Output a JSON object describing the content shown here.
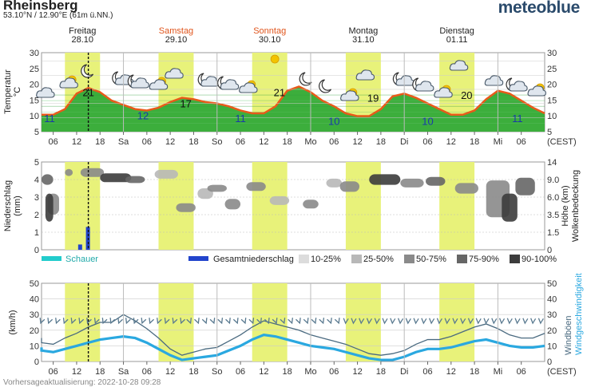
{
  "header": {
    "location": "Rheinsberg",
    "coordinates": "53.10°N / 12.90°E (61m ü.NN.)",
    "brand": "meteoblue"
  },
  "footer": {
    "updated": "Vorhersageaktualisierung: 2022-10-28 09:28"
  },
  "colors": {
    "daylight": "#e8f27a",
    "temp_line": "#e85a1a",
    "temp_fill": "#3cae3c",
    "weekend_label": "#e0541b",
    "precip_bar": "#2244cc",
    "shower": "#22cccc",
    "wind": "#2aa8e0",
    "gust": "#4a6a80"
  },
  "days": [
    {
      "name": "Freitag",
      "date": "28.10",
      "weekend": false
    },
    {
      "name": "Samstag",
      "date": "29.10",
      "weekend": true
    },
    {
      "name": "Sonntag",
      "date": "30.10",
      "weekend": true
    },
    {
      "name": "Montag",
      "date": "31.10",
      "weekend": false
    },
    {
      "name": "Dienstag",
      "date": "01.11",
      "weekend": false
    }
  ],
  "time_axis": {
    "ticks": [
      "06",
      "12",
      "18",
      "Sa",
      "06",
      "12",
      "18",
      "So",
      "06",
      "12",
      "18",
      "Mo",
      "06",
      "12",
      "18",
      "Di",
      "06",
      "12",
      "18",
      "Mi",
      "06"
    ],
    "tz_label": "(CEST)"
  },
  "chart_data": [
    {
      "type": "area",
      "title": "",
      "ylabel": "Temperatur °C",
      "ylim": [
        5,
        33
      ],
      "yticks": [
        "5",
        "10",
        "15",
        "20",
        "25",
        "30"
      ],
      "x_unit": "hours from 2022-10-28 00:00",
      "series": [
        {
          "name": "Temperatur",
          "x": [
            3,
            6,
            9,
            12,
            15,
            18,
            21,
            24,
            27,
            30,
            33,
            36,
            39,
            42,
            45,
            48,
            51,
            54,
            57,
            60,
            63,
            66,
            69,
            72,
            75,
            78,
            81,
            84,
            87,
            90,
            93,
            96,
            99,
            102,
            105,
            108,
            111,
            114,
            117,
            120,
            123,
            126,
            129,
            132
          ],
          "values": [
            11,
            11,
            13,
            18.5,
            20.5,
            19,
            16,
            14.5,
            13,
            12.5,
            13.5,
            15.5,
            17,
            16.5,
            15.5,
            15,
            14,
            12.5,
            11.5,
            11.5,
            14,
            19.5,
            21,
            19,
            16,
            14,
            11.5,
            10.5,
            10.5,
            13,
            17.5,
            18.5,
            17,
            15,
            13,
            11,
            11,
            12.5,
            16.5,
            19.5,
            18.5,
            16,
            13.5,
            11.5
          ]
        }
      ],
      "labels": [
        {
          "x": 3,
          "value": "11",
          "kind": "min"
        },
        {
          "x": 15,
          "value": "21",
          "kind": "max"
        },
        {
          "x": 29,
          "value": "12",
          "kind": "min"
        },
        {
          "x": 40,
          "value": "17",
          "kind": "max"
        },
        {
          "x": 54,
          "value": "11",
          "kind": "min"
        },
        {
          "x": 64,
          "value": "21",
          "kind": "max"
        },
        {
          "x": 78,
          "value": "10",
          "kind": "min"
        },
        {
          "x": 88,
          "value": "19",
          "kind": "max"
        },
        {
          "x": 102,
          "value": "10",
          "kind": "min"
        },
        {
          "x": 112,
          "value": "20",
          "kind": "max"
        },
        {
          "x": 125,
          "value": "11",
          "kind": "min"
        }
      ],
      "ylabel_right": ""
    },
    {
      "type": "heatmap",
      "title": "",
      "ylabel": "Niederschlag (mm)",
      "ylim": [
        0,
        5
      ],
      "yticks": [
        "0",
        "1",
        "2",
        "3",
        "4",
        "5"
      ],
      "ylabel_right": "Höhe (km) Wolkenbedeckung",
      "yticks_right": [
        "0",
        "1.5",
        "3.5",
        "6.0",
        "9.0",
        "14"
      ],
      "bars": [
        {
          "name": "Gesamtniederschlag",
          "x": [
            13,
            15
          ],
          "values": [
            0.3,
            1.3
          ]
        }
      ],
      "legend": [
        {
          "label": "Schauer",
          "color": "#22cccc"
        },
        {
          "label": "Gesamtniederschlag",
          "color": "#2244cc"
        },
        {
          "label": "10-25%",
          "color": "#dcdcdc"
        },
        {
          "label": "25-50%",
          "color": "#b8b8b8"
        },
        {
          "label": "50-75%",
          "color": "#8a8a8a"
        },
        {
          "label": "75-90%",
          "color": "#666666"
        },
        {
          "label": "90-100%",
          "color": "#3c3c3c"
        }
      ]
    },
    {
      "type": "line",
      "title": "",
      "ylabel": "(km/h)",
      "ylim": [
        0,
        50
      ],
      "yticks": [
        "0",
        "10",
        "20",
        "30",
        "40",
        "50"
      ],
      "ylabel_right": "Windböen Windgeschwindigkeit",
      "series": [
        {
          "name": "Windgeschwindigkeit",
          "x": [
            0,
            3,
            6,
            9,
            12,
            15,
            18,
            21,
            24,
            27,
            30,
            33,
            36,
            39,
            42,
            45,
            48,
            51,
            54,
            57,
            60,
            63,
            66,
            69,
            72,
            75,
            78,
            81,
            84,
            87,
            90,
            93,
            96,
            99,
            102,
            105,
            108,
            111,
            114,
            117,
            120,
            123,
            126,
            129,
            132
          ],
          "values": [
            9,
            7,
            6,
            8,
            10,
            12,
            14,
            15,
            16,
            15,
            12,
            8,
            4,
            1,
            2,
            3,
            4,
            7,
            10,
            14,
            17,
            16,
            14,
            12,
            10,
            9,
            8,
            6,
            4,
            2,
            1,
            1,
            3,
            6,
            8,
            8,
            9,
            11,
            13,
            14,
            12,
            10,
            9,
            9,
            10
          ]
        },
        {
          "name": "Windböen",
          "x": [
            0,
            3,
            6,
            9,
            12,
            15,
            18,
            21,
            24,
            27,
            30,
            33,
            36,
            39,
            42,
            45,
            48,
            51,
            54,
            57,
            60,
            63,
            66,
            69,
            72,
            75,
            78,
            81,
            84,
            87,
            90,
            93,
            96,
            99,
            102,
            105,
            108,
            111,
            114,
            117,
            120,
            123,
            126,
            129,
            132
          ],
          "values": [
            15,
            12,
            11,
            15,
            18,
            22,
            25,
            25,
            30,
            26,
            21,
            15,
            8,
            4,
            6,
            8,
            9,
            13,
            17,
            22,
            26,
            24,
            22,
            20,
            17,
            15,
            13,
            11,
            8,
            5,
            4,
            5,
            7,
            11,
            14,
            14,
            16,
            19,
            22,
            24,
            21,
            17,
            15,
            15,
            18
          ]
        }
      ]
    }
  ]
}
